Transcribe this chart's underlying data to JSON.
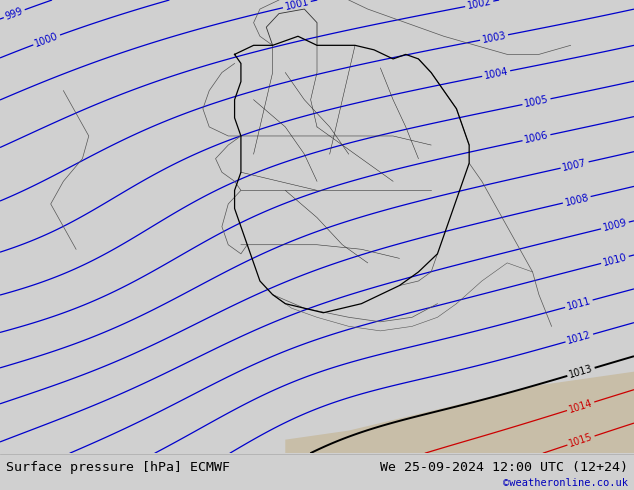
{
  "title_left": "Surface pressure [hPa] ECMWF",
  "title_right": "We 25-09-2024 12:00 UTC (12+24)",
  "attribution": "©weatheronline.co.uk",
  "bg_color_land": "#b0de80",
  "bg_color_sea": "#d0d0d0",
  "bg_color_sea2": "#c8c8c8",
  "bottom_bar_color": "#c8c8c8",
  "contour_blue_color": "#0000cc",
  "contour_black_color": "#000000",
  "contour_red_color": "#cc0000",
  "label_fontsize": 7.0,
  "title_fontsize": 9.5,
  "attribution_color": "#0000bb",
  "figsize": [
    6.34,
    4.9
  ],
  "dpi": 100,
  "pressure_levels_blue": [
    999,
    1000,
    1001,
    1002,
    1003,
    1004,
    1005,
    1006,
    1007,
    1008,
    1009,
    1010,
    1011,
    1012
  ],
  "pressure_levels_black": [
    1013
  ],
  "pressure_levels_red": [
    1014,
    1015
  ]
}
